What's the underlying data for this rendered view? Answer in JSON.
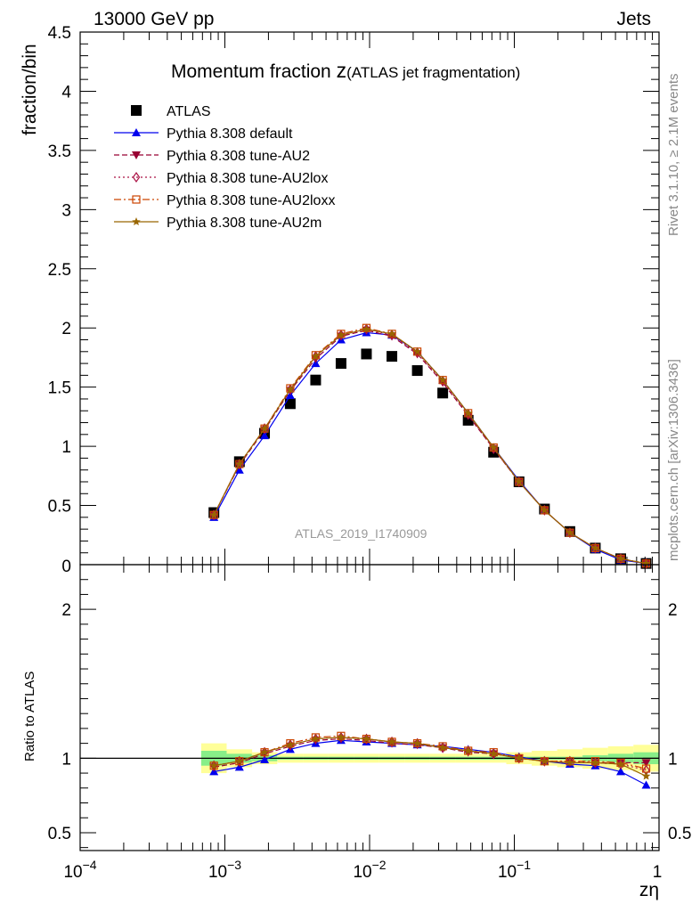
{
  "header": {
    "left": "13000 GeV pp",
    "right": "Jets"
  },
  "side": {
    "top": "Rivet 3.1.10, ≥ 2.1M events",
    "bottom": "mcplots.cern.ch [arXiv:1306.3436]"
  },
  "watermark": "ATLAS_2019_I1740909",
  "chart_data": [
    {
      "type": "scatter",
      "panel": "main",
      "title_main": "Momentum fraction ",
      "title_var": "z",
      "title_sub": "(ATLAS jet fragmentation)",
      "ylabel": "fraction/bin",
      "xscale": "log",
      "xlim": [
        0.0001,
        1
      ],
      "ylim": [
        0,
        4.5
      ],
      "yticks": [
        0.5,
        1,
        1.5,
        2,
        2.5,
        3,
        3.5,
        4,
        4.5
      ],
      "ytick_labels": [
        "0.5",
        "1",
        "1.5",
        "2",
        "2.5",
        "3",
        "3.5",
        "4",
        "4.5"
      ],
      "bottom_tick_label": "0",
      "legend_position": "top-left",
      "x": [
        0.00084,
        0.00126,
        0.00188,
        0.00283,
        0.00424,
        0.00635,
        0.00951,
        0.01426,
        0.02137,
        0.03202,
        0.04799,
        0.07192,
        0.10778,
        0.16153,
        0.24207,
        0.36278,
        0.54367,
        0.81477
      ],
      "series": [
        {
          "name": "ATLAS",
          "style": "data",
          "color": "#000000",
          "marker": "square",
          "values": [
            0.44,
            0.87,
            1.11,
            1.36,
            1.56,
            1.7,
            1.78,
            1.76,
            1.64,
            1.45,
            1.22,
            0.95,
            0.7,
            0.47,
            0.28,
            0.14,
            0.05,
            0.01
          ]
        },
        {
          "name": "Pythia 8.308 default",
          "color": "#0000ee",
          "marker": "triangle-up",
          "dash": "",
          "values": [
            0.4,
            0.8,
            1.09,
            1.43,
            1.7,
            1.9,
            1.96,
            1.94,
            1.8,
            1.56,
            1.28,
            0.99,
            0.71,
            0.46,
            0.27,
            0.13,
            0.04,
            0.01
          ]
        },
        {
          "name": "Pythia 8.308 tune-AU2",
          "color": "#990033",
          "marker": "triangle-down",
          "dash": "6,3",
          "values": [
            0.42,
            0.84,
            1.14,
            1.47,
            1.74,
            1.93,
            1.98,
            1.93,
            1.78,
            1.54,
            1.26,
            0.98,
            0.7,
            0.46,
            0.27,
            0.14,
            0.05,
            0.01
          ]
        },
        {
          "name": "Pythia 8.308 tune-AU2lox",
          "color": "#aa1144",
          "marker": "diamond",
          "dash": "2,3",
          "values": [
            0.42,
            0.85,
            1.15,
            1.48,
            1.76,
            1.94,
            1.99,
            1.94,
            1.79,
            1.55,
            1.27,
            0.98,
            0.7,
            0.46,
            0.27,
            0.14,
            0.05,
            0.01
          ]
        },
        {
          "name": "Pythia 8.308 tune-AU2loxx",
          "color": "#cc4400",
          "marker": "square-open",
          "dash": "8,3,2,3",
          "values": [
            0.42,
            0.85,
            1.15,
            1.49,
            1.77,
            1.95,
            2.0,
            1.95,
            1.8,
            1.56,
            1.28,
            0.99,
            0.7,
            0.46,
            0.27,
            0.14,
            0.05,
            0.01
          ]
        },
        {
          "name": "Pythia 8.308 tune-AU2m",
          "color": "#996600",
          "marker": "star",
          "dash": "",
          "values": [
            0.42,
            0.85,
            1.15,
            1.48,
            1.76,
            1.94,
            1.99,
            1.95,
            1.8,
            1.56,
            1.28,
            0.99,
            0.7,
            0.46,
            0.27,
            0.14,
            0.05,
            0.01
          ]
        }
      ]
    },
    {
      "type": "line",
      "panel": "ratio",
      "ylabel": "Ratio to ATLAS",
      "xlabel": "zη",
      "xscale": "log",
      "xlim": [
        0.0001,
        1
      ],
      "ylim": [
        0.38,
        2.3
      ],
      "yticks": [
        0.5,
        1,
        2
      ],
      "ytick_labels": [
        "0.5",
        "1",
        "2"
      ],
      "xticks": [
        0.0001,
        0.001,
        0.01,
        0.1,
        1
      ],
      "xtick_labels": [
        {
          "base": "10",
          "exp": "−4"
        },
        {
          "base": "10",
          "exp": "−3"
        },
        {
          "base": "10",
          "exp": "−2"
        },
        {
          "base": "10",
          "exp": "−1"
        },
        {
          "base": "1",
          "exp": ""
        }
      ],
      "x": [
        0.00084,
        0.00126,
        0.00188,
        0.00283,
        0.00424,
        0.00635,
        0.00951,
        0.01426,
        0.02137,
        0.03202,
        0.04799,
        0.07192,
        0.10778,
        0.16153,
        0.24207,
        0.36278,
        0.54367,
        0.81477
      ],
      "band_stat": [
        0.05,
        0.03,
        0.02,
        0.01,
        0.01,
        0.01,
        0.01,
        0.01,
        0.01,
        0.01,
        0.01,
        0.01,
        0.01,
        0.01,
        0.01,
        0.02,
        0.03,
        0.04
      ],
      "band_total": [
        0.1,
        0.06,
        0.04,
        0.03,
        0.03,
        0.03,
        0.03,
        0.03,
        0.03,
        0.03,
        0.03,
        0.03,
        0.04,
        0.05,
        0.06,
        0.07,
        0.08,
        0.09
      ],
      "band_colors": {
        "total": "#ffff99",
        "stat": "#88ee88"
      },
      "series": [
        {
          "name": "Pythia 8.308 default",
          "color": "#0000ee",
          "marker": "triangle-up",
          "dash": "",
          "values": [
            0.91,
            0.94,
            0.99,
            1.06,
            1.1,
            1.12,
            1.11,
            1.1,
            1.09,
            1.08,
            1.06,
            1.04,
            1.01,
            0.98,
            0.96,
            0.95,
            0.91,
            0.82
          ]
        },
        {
          "name": "Pythia 8.308 tune-AU2",
          "color": "#990033",
          "marker": "triangle-down",
          "dash": "6,3",
          "values": [
            0.94,
            0.97,
            1.03,
            1.08,
            1.12,
            1.13,
            1.12,
            1.1,
            1.09,
            1.07,
            1.04,
            1.03,
            1.0,
            0.98,
            0.97,
            0.97,
            0.97,
            0.97
          ]
        },
        {
          "name": "Pythia 8.308 tune-AU2lox",
          "color": "#aa1144",
          "marker": "diamond",
          "dash": "2,3",
          "values": [
            0.95,
            0.98,
            1.04,
            1.09,
            1.13,
            1.14,
            1.13,
            1.11,
            1.1,
            1.07,
            1.05,
            1.03,
            1.0,
            0.98,
            0.98,
            0.97,
            0.96,
            0.92
          ]
        },
        {
          "name": "Pythia 8.308 tune-AU2loxx",
          "color": "#cc4400",
          "marker": "square-open",
          "dash": "8,3,2,3",
          "values": [
            0.95,
            0.98,
            1.04,
            1.1,
            1.14,
            1.15,
            1.13,
            1.11,
            1.1,
            1.08,
            1.05,
            1.04,
            1.0,
            0.98,
            0.98,
            0.98,
            0.97,
            0.93
          ]
        },
        {
          "name": "Pythia 8.308 tune-AU2m",
          "color": "#996600",
          "marker": "star",
          "dash": "",
          "values": [
            0.95,
            0.98,
            1.04,
            1.09,
            1.13,
            1.14,
            1.13,
            1.11,
            1.1,
            1.07,
            1.05,
            1.03,
            1.0,
            0.98,
            0.97,
            0.97,
            0.96,
            0.88
          ]
        }
      ]
    }
  ]
}
